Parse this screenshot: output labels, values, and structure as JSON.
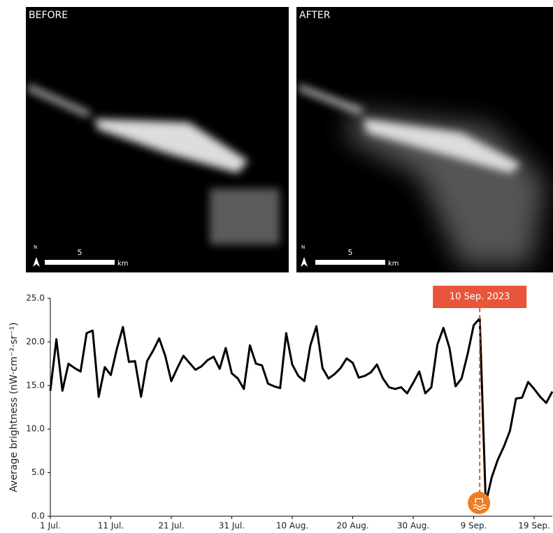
{
  "maps": [
    {
      "label": "BEFORE",
      "scale": "5",
      "unit": "km",
      "north": "N"
    },
    {
      "label": "AFTER",
      "scale": "5",
      "unit": "km",
      "north": "N"
    }
  ],
  "chart_data": {
    "type": "line",
    "y_label": "Average brightness (nW·cm⁻²·sr⁻¹)",
    "x": [
      0,
      1,
      2,
      3,
      4,
      5,
      6,
      7,
      8,
      9,
      10,
      11,
      12,
      13,
      14,
      15,
      16,
      17,
      18,
      19,
      20,
      21,
      22,
      23,
      24,
      25,
      26,
      27,
      28,
      29,
      30,
      31,
      32,
      33,
      34,
      35,
      36,
      37,
      38,
      39,
      40,
      41,
      42,
      43,
      44,
      45,
      46,
      47,
      48,
      49,
      50,
      51,
      52,
      53,
      54,
      55,
      56,
      57,
      58,
      59,
      60,
      61,
      62,
      63,
      64,
      65,
      66,
      67,
      68,
      69,
      70,
      71,
      72,
      73,
      74,
      75,
      76,
      77,
      78,
      79,
      80,
      81,
      82,
      83
    ],
    "series": [
      {
        "color": "#000000",
        "values": [
          14.4,
          20.3,
          14.4,
          17.5,
          17.0,
          16.6,
          21.0,
          21.3,
          13.7,
          17.1,
          16.2,
          19.2,
          21.7,
          17.7,
          17.8,
          13.7,
          17.8,
          19.0,
          20.4,
          18.4,
          15.5,
          17.0,
          18.4,
          17.6,
          16.8,
          17.2,
          17.9,
          18.3,
          16.9,
          19.3,
          16.4,
          15.8,
          14.6,
          19.6,
          17.5,
          17.3,
          15.2,
          14.9,
          14.7,
          21.0,
          17.4,
          16.1,
          15.5,
          19.6,
          21.8,
          17.0,
          15.8,
          16.3,
          17.0,
          18.1,
          17.6,
          15.9,
          16.1,
          16.5,
          17.4,
          15.8,
          14.8,
          14.6,
          14.8,
          14.1,
          15.3,
          16.6,
          14.1,
          14.8,
          19.7,
          21.6,
          19.3,
          14.9,
          15.8,
          18.6,
          21.9,
          22.7,
          1.5,
          4.5,
          6.5,
          8.0,
          9.8,
          13.5,
          13.6,
          15.4,
          14.6,
          13.7,
          13.0,
          14.3
        ]
      }
    ],
    "xlim": [
      0,
      83
    ],
    "xticks": [
      {
        "value": 0,
        "label": "1 Jul."
      },
      {
        "value": 10,
        "label": "11 Jul."
      },
      {
        "value": 20,
        "label": "21 Jul."
      },
      {
        "value": 30,
        "label": "31 Jul."
      },
      {
        "value": 40,
        "label": "10 Aug."
      },
      {
        "value": 50,
        "label": "20 Aug."
      },
      {
        "value": 60,
        "label": "30 Aug."
      },
      {
        "value": 70,
        "label": "9 Sep."
      },
      {
        "value": 80,
        "label": "19 Sep."
      }
    ],
    "ylim": [
      0,
      25
    ],
    "yticks": [
      {
        "value": 0,
        "label": "0.0"
      },
      {
        "value": 5,
        "label": "5.0"
      },
      {
        "value": 10,
        "label": "10.0"
      },
      {
        "value": 15,
        "label": "15.0"
      },
      {
        "value": 20,
        "label": "20.0"
      },
      {
        "value": 25,
        "label": "25.0"
      }
    ],
    "annotation": {
      "text": "10 Sep. 2023",
      "x": 71,
      "color": "#e8553a"
    }
  }
}
